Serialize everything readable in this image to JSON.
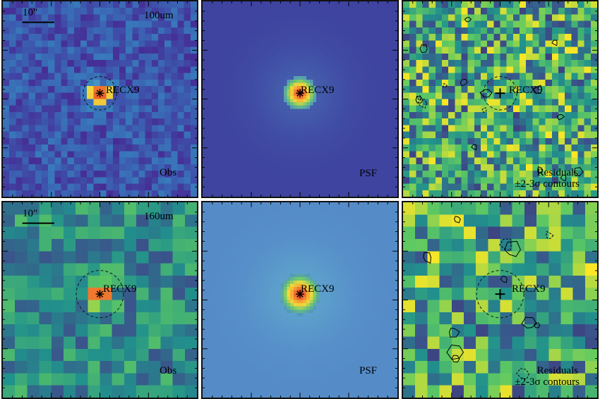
{
  "panels": [
    {
      "row": 0,
      "col": 0,
      "kind": "obs",
      "band": "100um",
      "scalebar": "10\"",
      "source": "RECX9",
      "corner_label": "Obs",
      "corner_label2": "",
      "colormap": "purple-viridis",
      "aperture": true,
      "marker": "star",
      "contours": false,
      "seed": 11
    },
    {
      "row": 0,
      "col": 1,
      "kind": "psf",
      "band": "",
      "scalebar": "",
      "source": "RECX9",
      "corner_label": "PSF",
      "corner_label2": "",
      "colormap": "dark",
      "aperture": false,
      "marker": "star",
      "contours": false,
      "seed": 12
    },
    {
      "row": 0,
      "col": 2,
      "kind": "res",
      "band": "",
      "scalebar": "",
      "source": "RECX9",
      "corner_label": "Residuals",
      "corner_label2": "±2-3σ contours",
      "colormap": "viridis",
      "aperture": true,
      "marker": "plus",
      "contours": true,
      "seed": 13
    },
    {
      "row": 1,
      "col": 0,
      "kind": "obs",
      "band": "160um",
      "scalebar": "10\"",
      "source": "RECX9",
      "corner_label": "Obs",
      "corner_label2": "",
      "colormap": "viridis",
      "aperture": true,
      "marker": "star",
      "contours": false,
      "seed": 21
    },
    {
      "row": 1,
      "col": 1,
      "kind": "psf",
      "band": "",
      "scalebar": "",
      "source": "RECX9",
      "corner_label": "PSF",
      "corner_label2": "",
      "colormap": "light",
      "aperture": false,
      "marker": "star",
      "contours": false,
      "seed": 22
    },
    {
      "row": 1,
      "col": 2,
      "kind": "res",
      "band": "",
      "scalebar": "",
      "source": "RECX9",
      "corner_label": "Residuals",
      "corner_label2": "±2-3σ contours",
      "colormap": "viridis",
      "aperture": true,
      "marker": "plus",
      "contours": true,
      "seed": 23
    }
  ],
  "colors": {
    "core": "#e0242a",
    "halo": "#f0a040",
    "frame": "#111111"
  }
}
